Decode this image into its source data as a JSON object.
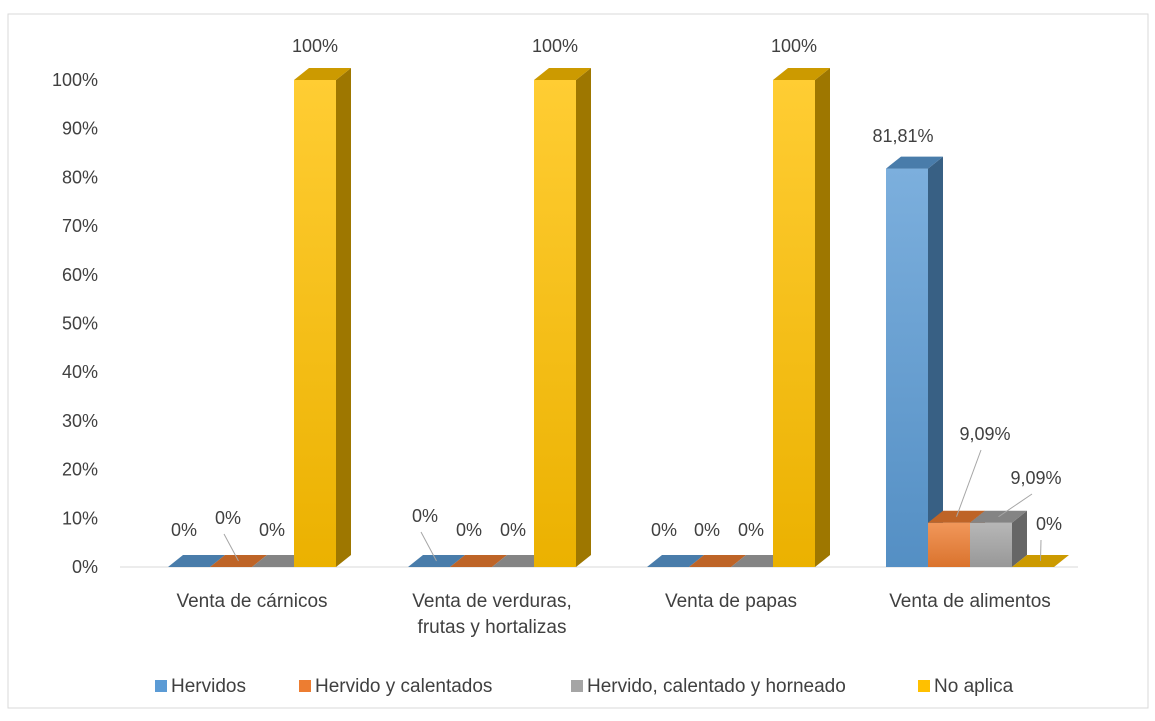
{
  "chart_data": {
    "type": "bar",
    "title": "",
    "xlabel": "",
    "ylabel": "",
    "ylim": [
      0,
      100
    ],
    "yticks": [
      "0%",
      "10%",
      "20%",
      "30%",
      "40%",
      "50%",
      "60%",
      "70%",
      "80%",
      "90%",
      "100%"
    ],
    "categories": [
      "Venta de cárnicos",
      "Venta de verduras, frutas y hortalizas",
      "Venta de papas",
      "Venta de alimentos"
    ],
    "category_labels": [
      [
        "Venta de cárnicos"
      ],
      [
        "Venta de verduras,",
        "frutas y hortalizas"
      ],
      [
        "Venta de papas"
      ],
      [
        "Venta de alimentos"
      ]
    ],
    "series": [
      {
        "name": "Hervidos",
        "values": [
          0,
          0,
          0,
          81.81
        ],
        "labels": [
          "0%",
          "0%",
          "0%",
          "81,81%"
        ],
        "color": "#5B9BD5"
      },
      {
        "name": "Hervido y calentados",
        "values": [
          0,
          0,
          0,
          9.09
        ],
        "labels": [
          "0%",
          "0%",
          "0%",
          "9,09%"
        ],
        "color": "#ED7D31"
      },
      {
        "name": "Hervido, calentado y horneado",
        "values": [
          0,
          0,
          0,
          9.09
        ],
        "labels": [
          "0%",
          "0%",
          "0%",
          "9,09%"
        ],
        "color": "#A5A5A5"
      },
      {
        "name": "No aplica",
        "values": [
          100,
          100,
          100,
          0
        ],
        "labels": [
          "100%",
          "100%",
          "100%",
          "0%"
        ],
        "color": "#FFC000"
      }
    ],
    "legend_position": "bottom",
    "grid": false,
    "style": "3d-column"
  }
}
